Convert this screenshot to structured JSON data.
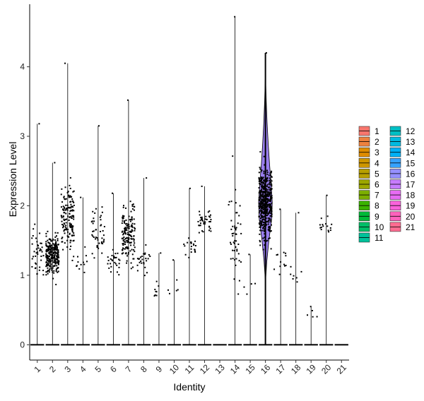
{
  "chart_data": {
    "type": "violin",
    "xlabel": "Identity",
    "ylabel": "Expression Level",
    "ylim": [
      -0.22,
      4.9
    ],
    "yticks": [
      0,
      1,
      2,
      3,
      4
    ],
    "categories": [
      "1",
      "2",
      "3",
      "4",
      "5",
      "6",
      "7",
      "8",
      "9",
      "10",
      "11",
      "12",
      "13",
      "14",
      "15",
      "16",
      "17",
      "18",
      "19",
      "20",
      "21"
    ],
    "series_max": [
      3.18,
      2.62,
      4.05,
      2.12,
      3.15,
      2.18,
      3.52,
      2.4,
      1.32,
      1.22,
      2.25,
      2.28,
      0,
      4.72,
      1.3,
      4.2,
      1.95,
      1.9,
      0.55,
      2.15,
      0
    ],
    "nonzero_counts": [
      40,
      260,
      150,
      12,
      45,
      28,
      160,
      25,
      8,
      5,
      20,
      40,
      0,
      50,
      4,
      500,
      12,
      7,
      4,
      15,
      0
    ],
    "nonzero_center": [
      1.3,
      1.3,
      1.8,
      1.2,
      1.6,
      1.2,
      1.6,
      1.2,
      0.8,
      0.8,
      1.4,
      1.8,
      0,
      1.5,
      0.9,
      2.05,
      1.2,
      1.0,
      0.5,
      1.7,
      0
    ],
    "highlight": {
      "category": "16",
      "violin_fill": "#9a7ff0",
      "violin_profile": [
        [
          0.9,
          0.0
        ],
        [
          1.2,
          0.1
        ],
        [
          1.5,
          0.25
        ],
        [
          1.8,
          0.45
        ],
        [
          2.05,
          0.5
        ],
        [
          2.3,
          0.42
        ],
        [
          2.6,
          0.3
        ],
        [
          2.9,
          0.2
        ],
        [
          3.2,
          0.12
        ],
        [
          3.5,
          0.06
        ],
        [
          3.9,
          0.0
        ]
      ]
    },
    "legend": {
      "placement": "right",
      "columns": 2,
      "entries": [
        {
          "label": "1",
          "color": "#f8766d"
        },
        {
          "label": "2",
          "color": "#ed813e"
        },
        {
          "label": "3",
          "color": "#de8c00"
        },
        {
          "label": "4",
          "color": "#cd9600"
        },
        {
          "label": "5",
          "color": "#b79f00"
        },
        {
          "label": "6",
          "color": "#9da700"
        },
        {
          "label": "7",
          "color": "#7cae00"
        },
        {
          "label": "8",
          "color": "#3bb300"
        },
        {
          "label": "9",
          "color": "#00ba38"
        },
        {
          "label": "10",
          "color": "#00be67"
        },
        {
          "label": "11",
          "color": "#00c19a"
        },
        {
          "label": "12",
          "color": "#00bfc4"
        },
        {
          "label": "13",
          "color": "#00bae0"
        },
        {
          "label": "14",
          "color": "#00b0f6"
        },
        {
          "label": "15",
          "color": "#35a2ff"
        },
        {
          "label": "16",
          "color": "#9590ff"
        },
        {
          "label": "17",
          "color": "#c77cff"
        },
        {
          "label": "18",
          "color": "#e76bf3"
        },
        {
          "label": "19",
          "color": "#fa62db"
        },
        {
          "label": "20",
          "color": "#ff62bc"
        },
        {
          "label": "21",
          "color": "#ff6c91"
        }
      ]
    }
  }
}
